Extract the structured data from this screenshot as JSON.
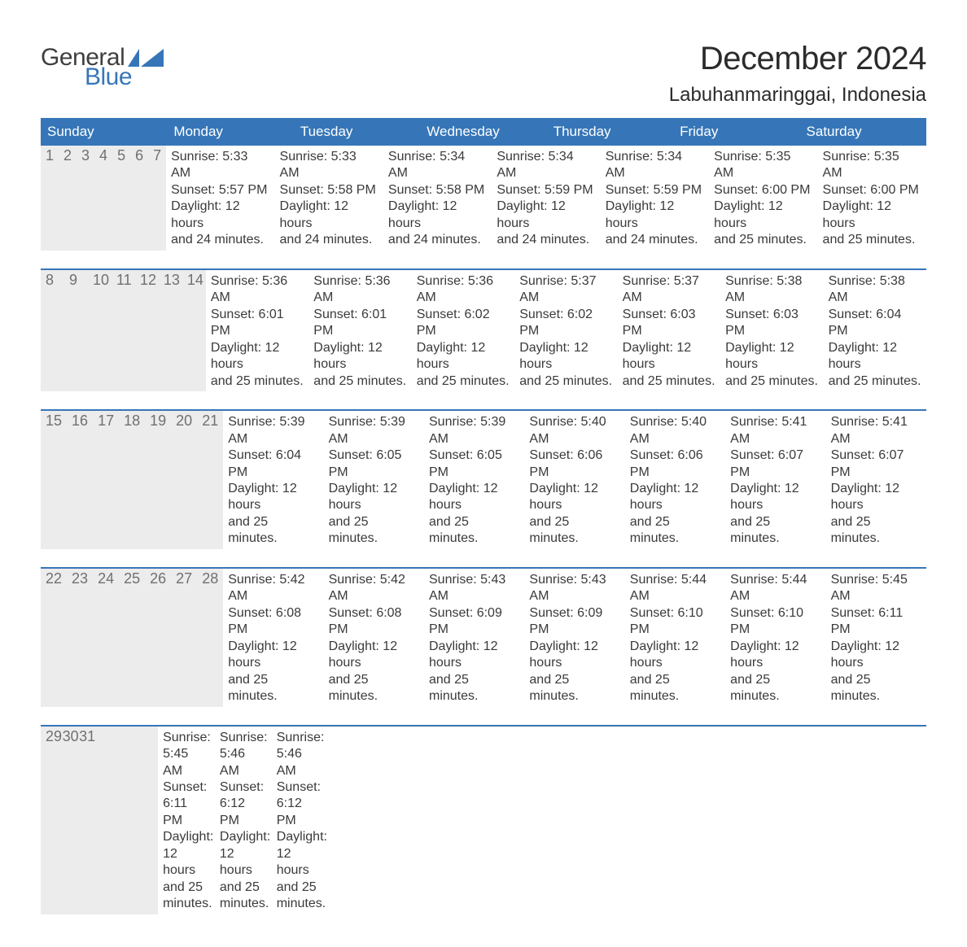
{
  "brand": {
    "word1": "General",
    "word2": "Blue",
    "flag_color": "#3676b8",
    "text_color": "#3f3f3f"
  },
  "title": "December 2024",
  "location": "Labuhanmaringgai, Indonesia",
  "colors": {
    "header_bg": "#3676b8",
    "header_text": "#ffffff",
    "daynum_bg": "#ececec",
    "daynum_text": "#707070",
    "body_text": "#3a3a3a",
    "rule": "#3676b8",
    "page_bg": "#ffffff"
  },
  "fonts": {
    "title_size_pt": 40,
    "location_size_pt": 24,
    "dow_size_pt": 17,
    "daynum_size_pt": 18,
    "body_size_pt": 16
  },
  "days_of_week": [
    "Sunday",
    "Monday",
    "Tuesday",
    "Wednesday",
    "Thursday",
    "Friday",
    "Saturday"
  ],
  "weeks": [
    [
      {
        "n": "1",
        "sr": "Sunrise: 5:33 AM",
        "ss": "Sunset: 5:57 PM",
        "d1": "Daylight: 12 hours",
        "d2": "and 24 minutes."
      },
      {
        "n": "2",
        "sr": "Sunrise: 5:33 AM",
        "ss": "Sunset: 5:58 PM",
        "d1": "Daylight: 12 hours",
        "d2": "and 24 minutes."
      },
      {
        "n": "3",
        "sr": "Sunrise: 5:34 AM",
        "ss": "Sunset: 5:58 PM",
        "d1": "Daylight: 12 hours",
        "d2": "and 24 minutes."
      },
      {
        "n": "4",
        "sr": "Sunrise: 5:34 AM",
        "ss": "Sunset: 5:59 PM",
        "d1": "Daylight: 12 hours",
        "d2": "and 24 minutes."
      },
      {
        "n": "5",
        "sr": "Sunrise: 5:34 AM",
        "ss": "Sunset: 5:59 PM",
        "d1": "Daylight: 12 hours",
        "d2": "and 24 minutes."
      },
      {
        "n": "6",
        "sr": "Sunrise: 5:35 AM",
        "ss": "Sunset: 6:00 PM",
        "d1": "Daylight: 12 hours",
        "d2": "and 25 minutes."
      },
      {
        "n": "7",
        "sr": "Sunrise: 5:35 AM",
        "ss": "Sunset: 6:00 PM",
        "d1": "Daylight: 12 hours",
        "d2": "and 25 minutes."
      }
    ],
    [
      {
        "n": "8",
        "sr": "Sunrise: 5:36 AM",
        "ss": "Sunset: 6:01 PM",
        "d1": "Daylight: 12 hours",
        "d2": "and 25 minutes."
      },
      {
        "n": "9",
        "sr": "Sunrise: 5:36 AM",
        "ss": "Sunset: 6:01 PM",
        "d1": "Daylight: 12 hours",
        "d2": "and 25 minutes."
      },
      {
        "n": "10",
        "sr": "Sunrise: 5:36 AM",
        "ss": "Sunset: 6:02 PM",
        "d1": "Daylight: 12 hours",
        "d2": "and 25 minutes."
      },
      {
        "n": "11",
        "sr": "Sunrise: 5:37 AM",
        "ss": "Sunset: 6:02 PM",
        "d1": "Daylight: 12 hours",
        "d2": "and 25 minutes."
      },
      {
        "n": "12",
        "sr": "Sunrise: 5:37 AM",
        "ss": "Sunset: 6:03 PM",
        "d1": "Daylight: 12 hours",
        "d2": "and 25 minutes."
      },
      {
        "n": "13",
        "sr": "Sunrise: 5:38 AM",
        "ss": "Sunset: 6:03 PM",
        "d1": "Daylight: 12 hours",
        "d2": "and 25 minutes."
      },
      {
        "n": "14",
        "sr": "Sunrise: 5:38 AM",
        "ss": "Sunset: 6:04 PM",
        "d1": "Daylight: 12 hours",
        "d2": "and 25 minutes."
      }
    ],
    [
      {
        "n": "15",
        "sr": "Sunrise: 5:39 AM",
        "ss": "Sunset: 6:04 PM",
        "d1": "Daylight: 12 hours",
        "d2": "and 25 minutes."
      },
      {
        "n": "16",
        "sr": "Sunrise: 5:39 AM",
        "ss": "Sunset: 6:05 PM",
        "d1": "Daylight: 12 hours",
        "d2": "and 25 minutes."
      },
      {
        "n": "17",
        "sr": "Sunrise: 5:39 AM",
        "ss": "Sunset: 6:05 PM",
        "d1": "Daylight: 12 hours",
        "d2": "and 25 minutes."
      },
      {
        "n": "18",
        "sr": "Sunrise: 5:40 AM",
        "ss": "Sunset: 6:06 PM",
        "d1": "Daylight: 12 hours",
        "d2": "and 25 minutes."
      },
      {
        "n": "19",
        "sr": "Sunrise: 5:40 AM",
        "ss": "Sunset: 6:06 PM",
        "d1": "Daylight: 12 hours",
        "d2": "and 25 minutes."
      },
      {
        "n": "20",
        "sr": "Sunrise: 5:41 AM",
        "ss": "Sunset: 6:07 PM",
        "d1": "Daylight: 12 hours",
        "d2": "and 25 minutes."
      },
      {
        "n": "21",
        "sr": "Sunrise: 5:41 AM",
        "ss": "Sunset: 6:07 PM",
        "d1": "Daylight: 12 hours",
        "d2": "and 25 minutes."
      }
    ],
    [
      {
        "n": "22",
        "sr": "Sunrise: 5:42 AM",
        "ss": "Sunset: 6:08 PM",
        "d1": "Daylight: 12 hours",
        "d2": "and 25 minutes."
      },
      {
        "n": "23",
        "sr": "Sunrise: 5:42 AM",
        "ss": "Sunset: 6:08 PM",
        "d1": "Daylight: 12 hours",
        "d2": "and 25 minutes."
      },
      {
        "n": "24",
        "sr": "Sunrise: 5:43 AM",
        "ss": "Sunset: 6:09 PM",
        "d1": "Daylight: 12 hours",
        "d2": "and 25 minutes."
      },
      {
        "n": "25",
        "sr": "Sunrise: 5:43 AM",
        "ss": "Sunset: 6:09 PM",
        "d1": "Daylight: 12 hours",
        "d2": "and 25 minutes."
      },
      {
        "n": "26",
        "sr": "Sunrise: 5:44 AM",
        "ss": "Sunset: 6:10 PM",
        "d1": "Daylight: 12 hours",
        "d2": "and 25 minutes."
      },
      {
        "n": "27",
        "sr": "Sunrise: 5:44 AM",
        "ss": "Sunset: 6:10 PM",
        "d1": "Daylight: 12 hours",
        "d2": "and 25 minutes."
      },
      {
        "n": "28",
        "sr": "Sunrise: 5:45 AM",
        "ss": "Sunset: 6:11 PM",
        "d1": "Daylight: 12 hours",
        "d2": "and 25 minutes."
      }
    ],
    [
      {
        "n": "29",
        "sr": "Sunrise: 5:45 AM",
        "ss": "Sunset: 6:11 PM",
        "d1": "Daylight: 12 hours",
        "d2": "and 25 minutes."
      },
      {
        "n": "30",
        "sr": "Sunrise: 5:46 AM",
        "ss": "Sunset: 6:12 PM",
        "d1": "Daylight: 12 hours",
        "d2": "and 25 minutes."
      },
      {
        "n": "31",
        "sr": "Sunrise: 5:46 AM",
        "ss": "Sunset: 6:12 PM",
        "d1": "Daylight: 12 hours",
        "d2": "and 25 minutes."
      },
      {
        "empty": true
      },
      {
        "empty": true
      },
      {
        "empty": true
      },
      {
        "empty": true
      }
    ]
  ]
}
